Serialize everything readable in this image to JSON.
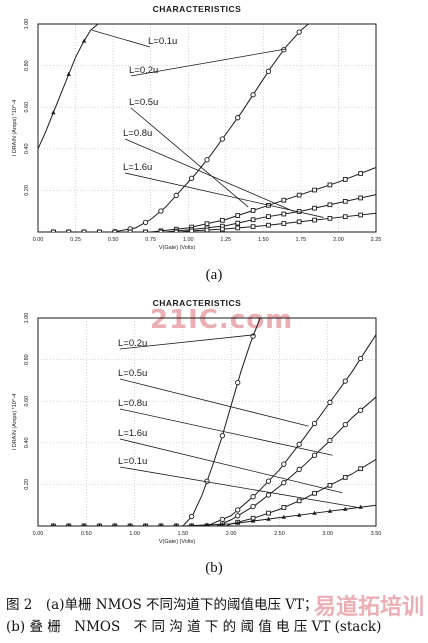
{
  "chart_data": [
    {
      "type": "line",
      "title": "CHARACTERISTICS",
      "xlabel": "V(Gate) (Volts)",
      "ylabel": "I DRAIN (Amps) *10^-4",
      "xlim": [
        0,
        2.25
      ],
      "ylim": [
        0,
        1.0
      ],
      "x_ticks": [
        "0.00",
        "0.25",
        "0.50",
        "0.75",
        "1.00",
        "1.25",
        "1.50",
        "1.75",
        "2.00",
        "2.25"
      ],
      "y_ticks": [
        "0.20",
        "0.40",
        "0.60",
        "0.80",
        "1.00"
      ],
      "grid": true,
      "series": [
        {
          "name": "L=0.1u",
          "marker": "triangle",
          "x": [
            0.0,
            0.05,
            0.1,
            0.15,
            0.2,
            0.25,
            0.3,
            0.35,
            0.4
          ],
          "y": [
            0.4,
            0.48,
            0.57,
            0.66,
            0.75,
            0.84,
            0.91,
            0.97,
            1.0
          ]
        },
        {
          "name": "L=0.2u",
          "marker": "circle",
          "x": [
            0.0,
            0.5,
            0.65,
            0.75,
            0.85,
            0.95,
            1.05,
            1.15,
            1.25,
            1.35,
            1.45,
            1.55,
            1.65,
            1.75,
            1.8
          ],
          "y": [
            0.0,
            0.0,
            0.02,
            0.06,
            0.12,
            0.2,
            0.28,
            0.37,
            0.47,
            0.57,
            0.68,
            0.79,
            0.89,
            0.97,
            1.0
          ]
        },
        {
          "name": "L=0.5u",
          "marker": "square",
          "x": [
            0.0,
            0.75,
            1.0,
            1.25,
            1.5,
            1.75,
            2.0,
            2.25
          ],
          "y": [
            0.0,
            0.0,
            0.02,
            0.06,
            0.12,
            0.18,
            0.24,
            0.31
          ]
        },
        {
          "name": "L=0.8u",
          "marker": "square",
          "x": [
            0.0,
            0.85,
            1.0,
            1.25,
            1.5,
            1.75,
            2.0,
            2.25
          ],
          "y": [
            0.0,
            0.0,
            0.01,
            0.03,
            0.07,
            0.1,
            0.14,
            0.18
          ]
        },
        {
          "name": "L=1.6u",
          "marker": "square",
          "x": [
            0.0,
            0.95,
            1.0,
            1.25,
            1.5,
            1.75,
            2.0,
            2.25
          ],
          "y": [
            0.0,
            0.0,
            0.004,
            0.015,
            0.03,
            0.05,
            0.07,
            0.09
          ]
        }
      ]
    },
    {
      "type": "line",
      "title": "CHARACTERISTICS",
      "xlabel": "V(Gate) (Volts)",
      "ylabel": "I DRAIN (Amps) *10^-4",
      "xlim": [
        0,
        3.5
      ],
      "ylim": [
        0,
        1.0
      ],
      "x_ticks": [
        "0.00",
        "0.50",
        "1.00",
        "1.50",
        "2.00",
        "2.50",
        "3.00",
        "3.50"
      ],
      "y_ticks": [
        "0.20",
        "0.40",
        "0.60",
        "0.80",
        "1.00"
      ],
      "grid": true,
      "series": [
        {
          "name": "L=0.2u",
          "marker": "circle",
          "x": [
            0.0,
            1.5,
            1.6,
            1.7,
            1.8,
            1.9,
            2.0,
            2.1,
            2.2,
            2.3
          ],
          "y": [
            0.0,
            0.0,
            0.05,
            0.15,
            0.28,
            0.42,
            0.58,
            0.74,
            0.88,
            1.0
          ]
        },
        {
          "name": "L=0.5u",
          "marker": "circle",
          "x": [
            0.0,
            1.75,
            2.0,
            2.25,
            2.5,
            2.75,
            3.0,
            3.25,
            3.5
          ],
          "y": [
            0.0,
            0.0,
            0.05,
            0.15,
            0.27,
            0.42,
            0.58,
            0.74,
            0.92
          ]
        },
        {
          "name": "L=0.8u",
          "marker": "circle",
          "x": [
            0.0,
            1.85,
            2.0,
            2.25,
            2.5,
            2.75,
            3.0,
            3.25,
            3.5
          ],
          "y": [
            0.0,
            0.0,
            0.03,
            0.1,
            0.19,
            0.29,
            0.4,
            0.52,
            0.62
          ]
        },
        {
          "name": "L=1.6u",
          "marker": "square",
          "x": [
            0.0,
            1.95,
            2.0,
            2.25,
            2.5,
            2.75,
            3.0,
            3.25,
            3.5
          ],
          "y": [
            0.0,
            0.0,
            0.01,
            0.04,
            0.08,
            0.13,
            0.19,
            0.25,
            0.32
          ]
        },
        {
          "name": "L=0.1u",
          "marker": "triangle",
          "x": [
            0.0,
            1.5,
            2.0,
            2.25,
            2.5,
            2.75,
            3.0,
            3.25,
            3.5
          ],
          "y": [
            0.0,
            0.0,
            0.01,
            0.025,
            0.04,
            0.055,
            0.07,
            0.085,
            0.1
          ]
        }
      ]
    }
  ],
  "sublabels": {
    "a": "(a)",
    "b": "(b)"
  },
  "caption": {
    "line1": "图 2　(a)单栅 NMOS 不同沟道下的阈值电压 VT；",
    "line2": "(b) 叠 栅　NMOS　不 同 沟 道 下 的 阈 值 电 压 VT (stack)"
  },
  "watermarks": {
    "top": "21IC.com",
    "bottom": "易道拓培训"
  },
  "colors": {
    "ink": "#1a1a1a",
    "grid": "#bdbdbd"
  }
}
